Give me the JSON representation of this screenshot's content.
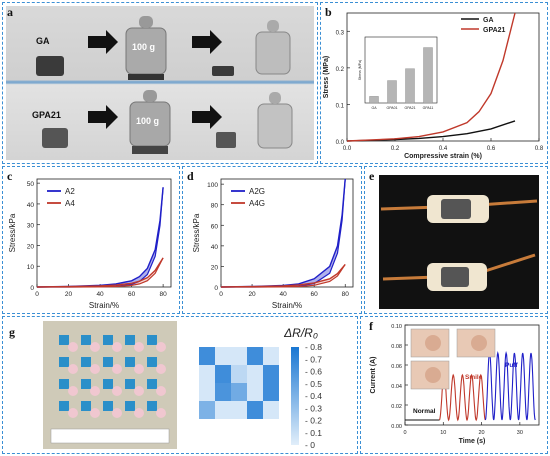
{
  "panels": {
    "a": {
      "label": "a",
      "row1_sample": "GA",
      "row2_sample": "GPA21",
      "weight_label": "100 g"
    },
    "b": {
      "label": "b"
    },
    "c": {
      "label": "c"
    },
    "d": {
      "label": "d"
    },
    "e": {
      "label": "e"
    },
    "f": {
      "label": "f"
    },
    "g": {
      "label": "g"
    }
  },
  "chart_data": [
    {
      "id": "b",
      "type": "line",
      "xlabel": "Compressive strain (%)",
      "ylabel": "Stress (MPa)",
      "xlim": [
        0.0,
        0.8
      ],
      "ylim": [
        0.0,
        0.35
      ],
      "xticks": [
        "0.0",
        "0.2",
        "0.4",
        "0.6",
        "0.8"
      ],
      "yticks": [
        "0.0",
        "0.1",
        "0.2",
        "0.3"
      ],
      "legend_position": "top-right",
      "series": [
        {
          "name": "GA",
          "color": "#111111",
          "x": [
            0,
            0.1,
            0.2,
            0.3,
            0.4,
            0.5,
            0.6,
            0.7
          ],
          "y": [
            0,
            0.002,
            0.004,
            0.007,
            0.012,
            0.02,
            0.033,
            0.055
          ]
        },
        {
          "name": "GPA21",
          "color": "#c0392b",
          "x": [
            0,
            0.1,
            0.2,
            0.3,
            0.4,
            0.5,
            0.55,
            0.6,
            0.65,
            0.7
          ],
          "y": [
            0,
            0.003,
            0.006,
            0.012,
            0.025,
            0.05,
            0.08,
            0.13,
            0.22,
            0.35
          ]
        }
      ],
      "inset": {
        "type": "bar",
        "ylabel": "Stress (MPa)",
        "categories": [
          "GA",
          "GPA01",
          "GPA21",
          "GPA11"
        ],
        "values": [
          0.05,
          0.17,
          0.26,
          0.42
        ],
        "ylim": [
          0,
          0.5
        ],
        "color": "#b5b5b5"
      }
    },
    {
      "id": "c",
      "type": "line",
      "xlabel": "Strain/%",
      "ylabel": "Stress/kPa",
      "xlim": [
        0,
        85
      ],
      "ylim": [
        0,
        52
      ],
      "xticks": [
        "0",
        "20",
        "40",
        "60",
        "80"
      ],
      "yticks": [
        "0",
        "10",
        "20",
        "30",
        "40",
        "50"
      ],
      "legend_position": "top-left",
      "series": [
        {
          "name": "A2",
          "color": "#2020c8",
          "x": [
            0,
            20,
            40,
            50,
            60,
            65,
            70,
            75,
            78,
            80
          ],
          "y": [
            0,
            0.3,
            0.8,
            1.5,
            3,
            5,
            9,
            18,
            32,
            48
          ]
        },
        {
          "name": "A4",
          "color": "#c0392b",
          "x": [
            0,
            20,
            40,
            50,
            60,
            65,
            70,
            75,
            80
          ],
          "y": [
            0,
            0.2,
            0.5,
            0.9,
            1.8,
            2.8,
            4.5,
            8,
            14
          ]
        }
      ]
    },
    {
      "id": "d",
      "type": "line",
      "xlabel": "Strain/%",
      "ylabel": "Stress/kPa",
      "xlim": [
        0,
        85
      ],
      "ylim": [
        0,
        105
      ],
      "xticks": [
        "0",
        "20",
        "40",
        "60",
        "80"
      ],
      "yticks": [
        "0",
        "20",
        "40",
        "60",
        "80",
        "100"
      ],
      "legend_position": "top-left",
      "series": [
        {
          "name": "A2G",
          "color": "#2020c8",
          "x": [
            0,
            20,
            40,
            50,
            60,
            70,
            75,
            78,
            80
          ],
          "y": [
            0,
            0.5,
            1.5,
            3,
            8,
            20,
            40,
            70,
            105
          ]
        },
        {
          "name": "A4G",
          "color": "#c0392b",
          "x": [
            0,
            20,
            40,
            50,
            60,
            70,
            75,
            80
          ],
          "y": [
            0,
            0.4,
            1,
            2,
            4,
            8,
            13,
            22
          ]
        }
      ]
    },
    {
      "id": "f",
      "type": "line",
      "xlabel": "Time (s)",
      "ylabel": "Current (A)",
      "xlim": [
        0,
        35
      ],
      "ylim": [
        0,
        0.1
      ],
      "xticks": [
        "0",
        "10",
        "20",
        "30"
      ],
      "yticks": [
        "0.00",
        "0.02",
        "0.04",
        "0.06",
        "0.08",
        "0.10"
      ],
      "annotations": [
        {
          "text": "Normal",
          "color": "#111111"
        },
        {
          "text": "Smile",
          "color": "#c0392b"
        },
        {
          "text": "Puff",
          "color": "#2020c8"
        }
      ],
      "segments": [
        {
          "name": "Normal",
          "color": "#111111",
          "t_start": 0,
          "t_end": 9,
          "baseline": 0.005,
          "peaks": 0,
          "peak": 0.005
        },
        {
          "name": "Smile",
          "color": "#c0392b",
          "t_start": 9,
          "t_end": 21,
          "baseline": 0.005,
          "peaks": 5,
          "peak": 0.05
        },
        {
          "name": "Puff",
          "color": "#2020c8",
          "t_start": 21,
          "t_end": 34,
          "baseline": 0.005,
          "peaks": 6,
          "peak": 0.072
        }
      ]
    },
    {
      "id": "g",
      "type": "heatmap",
      "colorbar_title": "ΔR/R₀",
      "colorbar_ticks": [
        "0.8",
        "0.7",
        "0.6",
        "0.5",
        "0.4",
        "0.3",
        "0.2",
        "0.1",
        "0"
      ],
      "range": [
        0,
        0.8
      ],
      "rows": 4,
      "cols": 5,
      "values": [
        [
          0.65,
          0.05,
          0.05,
          0.65,
          0.05
        ],
        [
          0.05,
          0.65,
          0.15,
          0.05,
          0.65
        ],
        [
          0.05,
          0.6,
          0.45,
          0.05,
          0.65
        ],
        [
          0.4,
          0.05,
          0.05,
          0.65,
          0.05
        ]
      ]
    }
  ]
}
